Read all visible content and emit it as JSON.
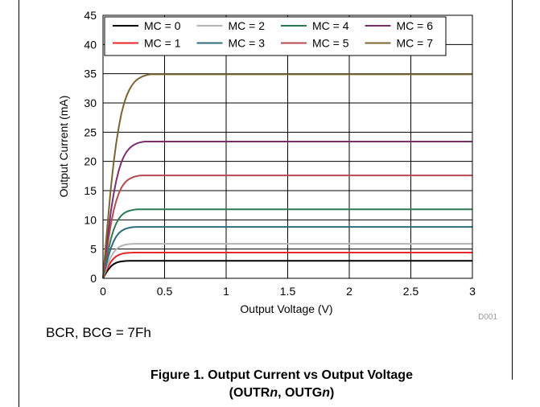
{
  "chart_data": {
    "type": "line",
    "xlabel": "Output Voltage (V)",
    "ylabel": "Output Current (mA)",
    "xlim": [
      0,
      3
    ],
    "ylim": [
      0,
      45
    ],
    "xticks": [
      "0",
      "0.5",
      "1",
      "1.5",
      "2",
      "2.5",
      "3"
    ],
    "yticks": [
      "0",
      "5",
      "10",
      "15",
      "20",
      "25",
      "30",
      "35",
      "40",
      "45"
    ],
    "grid": true,
    "legend_position": "top",
    "figure_id": "D001",
    "series": [
      {
        "name": "MC = 0",
        "color": "#000000",
        "saturation_current": 3.0,
        "knee_voltage": 0.22
      },
      {
        "name": "MC = 1",
        "color": "#e8262a",
        "saturation_current": 4.4,
        "knee_voltage": 0.24
      },
      {
        "name": "MC = 2",
        "color": "#b4b4b4",
        "saturation_current": 5.9,
        "knee_voltage": 0.25
      },
      {
        "name": "MC = 3",
        "color": "#2f6a7d",
        "saturation_current": 8.8,
        "knee_voltage": 0.27
      },
      {
        "name": "MC = 4",
        "color": "#2f7a55",
        "saturation_current": 11.8,
        "knee_voltage": 0.28
      },
      {
        "name": "MC = 5",
        "color": "#b54a4f",
        "saturation_current": 17.6,
        "knee_voltage": 0.31
      },
      {
        "name": "MC = 6",
        "color": "#7a2f6e",
        "saturation_current": 23.4,
        "knee_voltage": 0.34
      },
      {
        "name": "MC = 7",
        "color": "#7a6432",
        "saturation_current": 34.9,
        "knee_voltage": 0.38
      }
    ]
  },
  "condition_text": "BCR, BCG = 7Fh",
  "caption": {
    "line1": "Figure 1. Output Current vs Output Voltage",
    "line2_prefix": "(OUTR",
    "var1": "n",
    "line2_mid": ", OUTG",
    "var2": "n",
    "line2_suffix": ")"
  }
}
